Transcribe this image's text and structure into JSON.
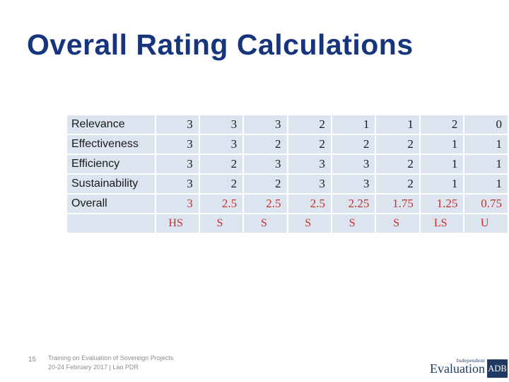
{
  "slide": {
    "title": "Overall Rating Calculations",
    "page_number": "15",
    "footer_line1": "Training on Evaluation of Sovereign Projects",
    "footer_line2": "20-24 February 2017 | Lao PDR"
  },
  "table": {
    "rows": [
      {
        "label": "Relevance",
        "values": [
          "3",
          "3",
          "3",
          "2",
          "1",
          "1",
          "2",
          "0"
        ]
      },
      {
        "label": "Effectiveness",
        "values": [
          "3",
          "3",
          "2",
          "2",
          "2",
          "2",
          "1",
          "1"
        ]
      },
      {
        "label": "Efficiency",
        "values": [
          "3",
          "2",
          "3",
          "3",
          "3",
          "2",
          "1",
          "1"
        ]
      },
      {
        "label": "Sustainability",
        "values": [
          "3",
          "2",
          "2",
          "3",
          "3",
          "2",
          "1",
          "1"
        ]
      },
      {
        "label": "Overall",
        "values": [
          "3",
          "2.5",
          "2.5",
          "2.5",
          "2.25",
          "1.75",
          "1.25",
          "0.75"
        ]
      },
      {
        "label": "",
        "values": [
          "HS",
          "S",
          "S",
          "S",
          "S",
          "S",
          "LS",
          "U"
        ]
      }
    ]
  },
  "logo": {
    "line1": "Independent",
    "line2": "Evaluation",
    "badge": "ADB"
  },
  "colors": {
    "title_navy": "#17357d",
    "cell_background": "#dce4ef",
    "score_black": "#1a1a1a",
    "overall_red": "#c2322d",
    "footer_gray": "#8d8d88",
    "logo_navy": "#203a64"
  }
}
